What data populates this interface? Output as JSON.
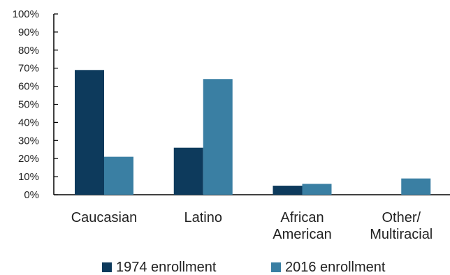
{
  "chart_data": {
    "type": "bar",
    "categories": [
      [
        "Caucasian"
      ],
      [
        "Latino"
      ],
      [
        "African",
        "American"
      ],
      [
        "Other/",
        "Multiracial"
      ]
    ],
    "series": [
      {
        "name": "1974 enrollment",
        "color": "#0d3a5c",
        "values": [
          69,
          26,
          5,
          0
        ]
      },
      {
        "name": "2016 enrollment",
        "color": "#3a7fa3",
        "values": [
          21,
          64,
          6,
          9
        ]
      }
    ],
    "y_ticks": [
      "0%",
      "10%",
      "20%",
      "30%",
      "40%",
      "50%",
      "60%",
      "70%",
      "80%",
      "90%",
      "100%"
    ],
    "ylim": [
      0,
      100
    ],
    "legend_position": "bottom",
    "grid": false
  }
}
